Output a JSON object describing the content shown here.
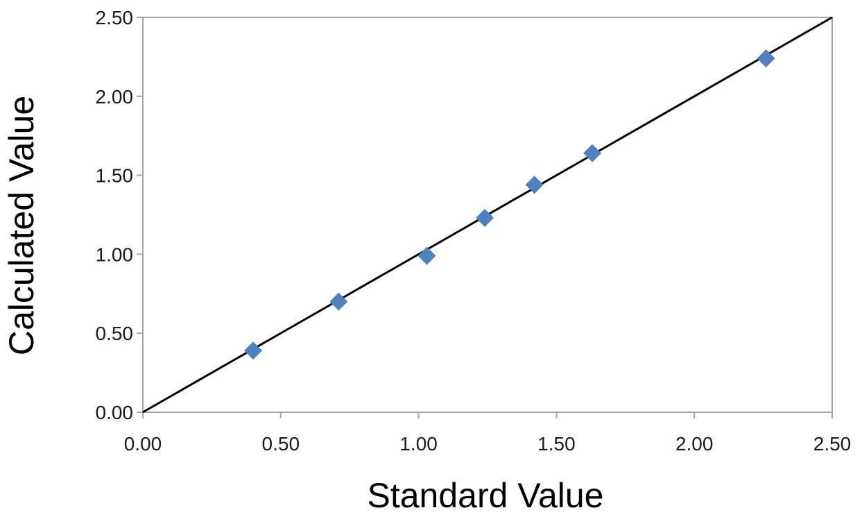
{
  "chart_data": {
    "type": "scatter",
    "title": "",
    "xlabel": "Standard Value",
    "ylabel": "Calculated Value",
    "xlim": [
      0,
      2.5
    ],
    "ylim": [
      0,
      2.5
    ],
    "x_ticks": [
      "0.00",
      "0.50",
      "1.00",
      "1.50",
      "2.00",
      "2.50"
    ],
    "y_ticks": [
      "0.00",
      "0.50",
      "1.00",
      "1.50",
      "2.00",
      "2.50"
    ],
    "grid": false,
    "legend": "none",
    "marker": "diamond",
    "marker_color": "#4F81BD",
    "line_color": "#000000",
    "series": [
      {
        "points": [
          {
            "x": 0.4,
            "y": 0.39
          },
          {
            "x": 0.71,
            "y": 0.7
          },
          {
            "x": 1.03,
            "y": 0.99
          },
          {
            "x": 1.24,
            "y": 1.23
          },
          {
            "x": 1.42,
            "y": 1.44
          },
          {
            "x": 1.63,
            "y": 1.64
          },
          {
            "x": 2.26,
            "y": 2.24
          }
        ]
      }
    ],
    "reference_line": {
      "x": [
        0,
        2.5
      ],
      "y": [
        0,
        2.5
      ]
    }
  }
}
